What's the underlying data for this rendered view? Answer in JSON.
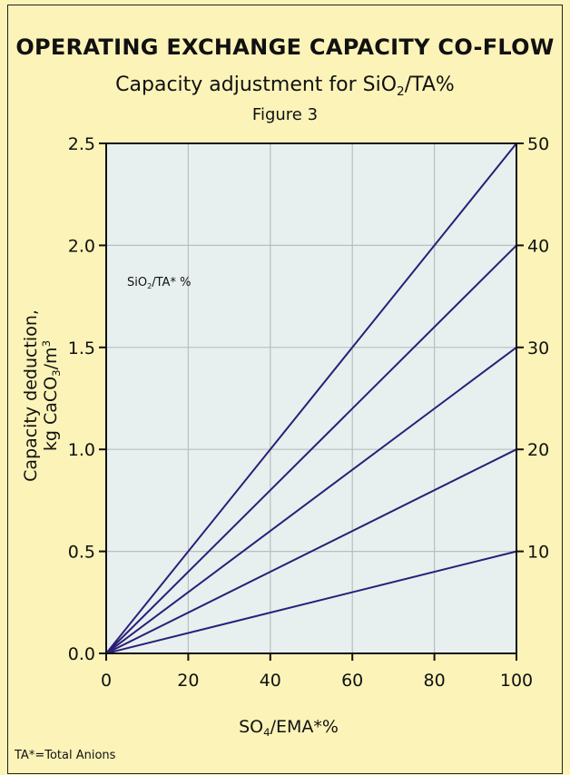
{
  "title": "OPERATING EXCHANGE CAPACITY CO-FLOW",
  "subtitle": {
    "pre": "Capacity adjustment for SiO",
    "sub": "2",
    "post": "/TA%"
  },
  "figure_label": "Figure 3",
  "footnote": "TA*=Total Anions",
  "chart_data": {
    "type": "line",
    "xlabel": {
      "pre": "SO",
      "sub": "4",
      "post": "/EMA*%"
    },
    "ylabel": {
      "line1": "Capacity deduction,",
      "line2_pre": "kg CaCO",
      "line2_sub": "3",
      "line2_mid": "/m",
      "line2_sup": "3"
    },
    "annotation": {
      "pre": "SiO",
      "sub": "2",
      "post": "/TA* %"
    },
    "xlim": [
      0,
      100
    ],
    "ylim": [
      0,
      2.5
    ],
    "right_axis_ticks": [
      10,
      20,
      30,
      40,
      50
    ],
    "x_ticks": [
      0,
      20,
      40,
      60,
      80,
      100
    ],
    "y_ticks": [
      "0.0",
      "0.5",
      "1.0",
      "1.5",
      "2.0",
      "2.5"
    ],
    "grid": true,
    "colors": {
      "plot_bg": "#e7f0ef",
      "line": "#2a1f78",
      "grid": "#bcbcbc",
      "page_bg": "#fbf3b8"
    },
    "series": [
      {
        "name": "10",
        "x": [
          0,
          100
        ],
        "y": [
          0,
          0.5
        ]
      },
      {
        "name": "20",
        "x": [
          0,
          100
        ],
        "y": [
          0,
          1.0
        ]
      },
      {
        "name": "30",
        "x": [
          0,
          100
        ],
        "y": [
          0,
          1.5
        ]
      },
      {
        "name": "40",
        "x": [
          0,
          100
        ],
        "y": [
          0,
          2.0
        ]
      },
      {
        "name": "50",
        "x": [
          0,
          100
        ],
        "y": [
          0,
          2.5
        ]
      }
    ]
  }
}
